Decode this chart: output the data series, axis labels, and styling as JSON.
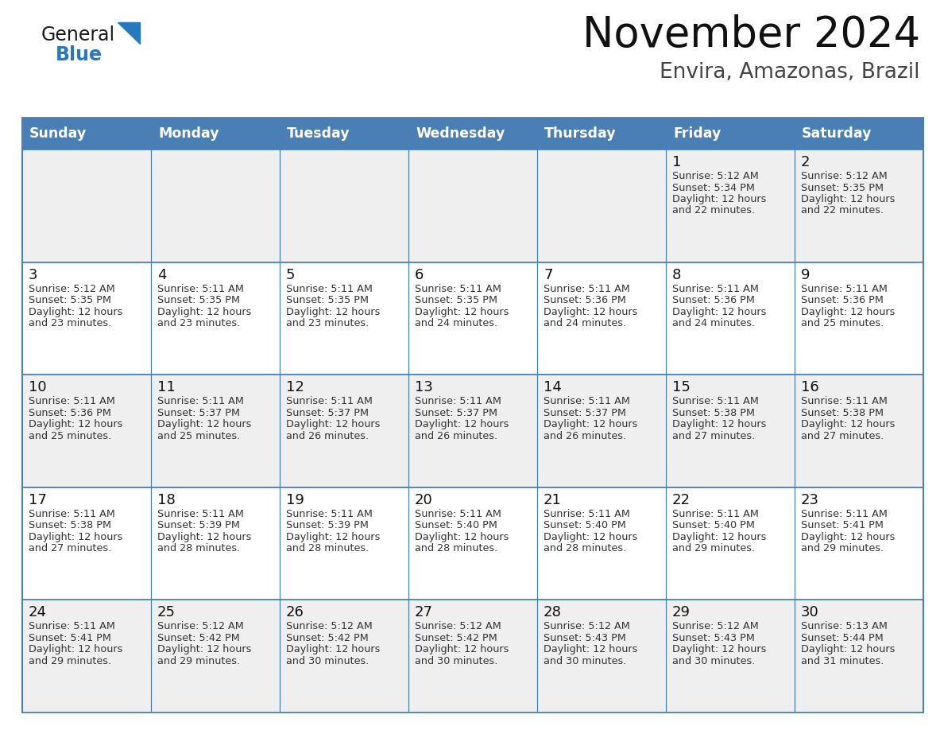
{
  "title": "November 2024",
  "subtitle": "Envira, Amazonas, Brazil",
  "header_bg": "#4a7fb5",
  "header_text_color": "#ffffff",
  "weekdays": [
    "Sunday",
    "Monday",
    "Tuesday",
    "Wednesday",
    "Thursday",
    "Friday",
    "Saturday"
  ],
  "row_bg_even": "#efefef",
  "row_bg_odd": "#ffffff",
  "cell_text_color": "#333333",
  "day_num_color": "#111111",
  "border_color": "#4a7fb5",
  "line_color": "#4a7fb5",
  "days": [
    {
      "day": 1,
      "col": 5,
      "row": 0,
      "sunrise": "5:12 AM",
      "sunset": "5:34 PM",
      "daylight_min": "22"
    },
    {
      "day": 2,
      "col": 6,
      "row": 0,
      "sunrise": "5:12 AM",
      "sunset": "5:35 PM",
      "daylight_min": "22"
    },
    {
      "day": 3,
      "col": 0,
      "row": 1,
      "sunrise": "5:12 AM",
      "sunset": "5:35 PM",
      "daylight_min": "23"
    },
    {
      "day": 4,
      "col": 1,
      "row": 1,
      "sunrise": "5:11 AM",
      "sunset": "5:35 PM",
      "daylight_min": "23"
    },
    {
      "day": 5,
      "col": 2,
      "row": 1,
      "sunrise": "5:11 AM",
      "sunset": "5:35 PM",
      "daylight_min": "23"
    },
    {
      "day": 6,
      "col": 3,
      "row": 1,
      "sunrise": "5:11 AM",
      "sunset": "5:35 PM",
      "daylight_min": "24"
    },
    {
      "day": 7,
      "col": 4,
      "row": 1,
      "sunrise": "5:11 AM",
      "sunset": "5:36 PM",
      "daylight_min": "24"
    },
    {
      "day": 8,
      "col": 5,
      "row": 1,
      "sunrise": "5:11 AM",
      "sunset": "5:36 PM",
      "daylight_min": "24"
    },
    {
      "day": 9,
      "col": 6,
      "row": 1,
      "sunrise": "5:11 AM",
      "sunset": "5:36 PM",
      "daylight_min": "25"
    },
    {
      "day": 10,
      "col": 0,
      "row": 2,
      "sunrise": "5:11 AM",
      "sunset": "5:36 PM",
      "daylight_min": "25"
    },
    {
      "day": 11,
      "col": 1,
      "row": 2,
      "sunrise": "5:11 AM",
      "sunset": "5:37 PM",
      "daylight_min": "25"
    },
    {
      "day": 12,
      "col": 2,
      "row": 2,
      "sunrise": "5:11 AM",
      "sunset": "5:37 PM",
      "daylight_min": "26"
    },
    {
      "day": 13,
      "col": 3,
      "row": 2,
      "sunrise": "5:11 AM",
      "sunset": "5:37 PM",
      "daylight_min": "26"
    },
    {
      "day": 14,
      "col": 4,
      "row": 2,
      "sunrise": "5:11 AM",
      "sunset": "5:37 PM",
      "daylight_min": "26"
    },
    {
      "day": 15,
      "col": 5,
      "row": 2,
      "sunrise": "5:11 AM",
      "sunset": "5:38 PM",
      "daylight_min": "27"
    },
    {
      "day": 16,
      "col": 6,
      "row": 2,
      "sunrise": "5:11 AM",
      "sunset": "5:38 PM",
      "daylight_min": "27"
    },
    {
      "day": 17,
      "col": 0,
      "row": 3,
      "sunrise": "5:11 AM",
      "sunset": "5:38 PM",
      "daylight_min": "27"
    },
    {
      "day": 18,
      "col": 1,
      "row": 3,
      "sunrise": "5:11 AM",
      "sunset": "5:39 PM",
      "daylight_min": "28"
    },
    {
      "day": 19,
      "col": 2,
      "row": 3,
      "sunrise": "5:11 AM",
      "sunset": "5:39 PM",
      "daylight_min": "28"
    },
    {
      "day": 20,
      "col": 3,
      "row": 3,
      "sunrise": "5:11 AM",
      "sunset": "5:40 PM",
      "daylight_min": "28"
    },
    {
      "day": 21,
      "col": 4,
      "row": 3,
      "sunrise": "5:11 AM",
      "sunset": "5:40 PM",
      "daylight_min": "28"
    },
    {
      "day": 22,
      "col": 5,
      "row": 3,
      "sunrise": "5:11 AM",
      "sunset": "5:40 PM",
      "daylight_min": "29"
    },
    {
      "day": 23,
      "col": 6,
      "row": 3,
      "sunrise": "5:11 AM",
      "sunset": "5:41 PM",
      "daylight_min": "29"
    },
    {
      "day": 24,
      "col": 0,
      "row": 4,
      "sunrise": "5:11 AM",
      "sunset": "5:41 PM",
      "daylight_min": "29"
    },
    {
      "day": 25,
      "col": 1,
      "row": 4,
      "sunrise": "5:12 AM",
      "sunset": "5:42 PM",
      "daylight_min": "29"
    },
    {
      "day": 26,
      "col": 2,
      "row": 4,
      "sunrise": "5:12 AM",
      "sunset": "5:42 PM",
      "daylight_min": "30"
    },
    {
      "day": 27,
      "col": 3,
      "row": 4,
      "sunrise": "5:12 AM",
      "sunset": "5:42 PM",
      "daylight_min": "30"
    },
    {
      "day": 28,
      "col": 4,
      "row": 4,
      "sunrise": "5:12 AM",
      "sunset": "5:43 PM",
      "daylight_min": "30"
    },
    {
      "day": 29,
      "col": 5,
      "row": 4,
      "sunrise": "5:12 AM",
      "sunset": "5:43 PM",
      "daylight_min": "30"
    },
    {
      "day": 30,
      "col": 6,
      "row": 4,
      "sunrise": "5:13 AM",
      "sunset": "5:44 PM",
      "daylight_min": "31"
    }
  ],
  "num_rows": 5,
  "logo_general_color": "#1a1a1a",
  "logo_blue_color": "#2878c0",
  "logo_triangle_color": "#2878c0"
}
